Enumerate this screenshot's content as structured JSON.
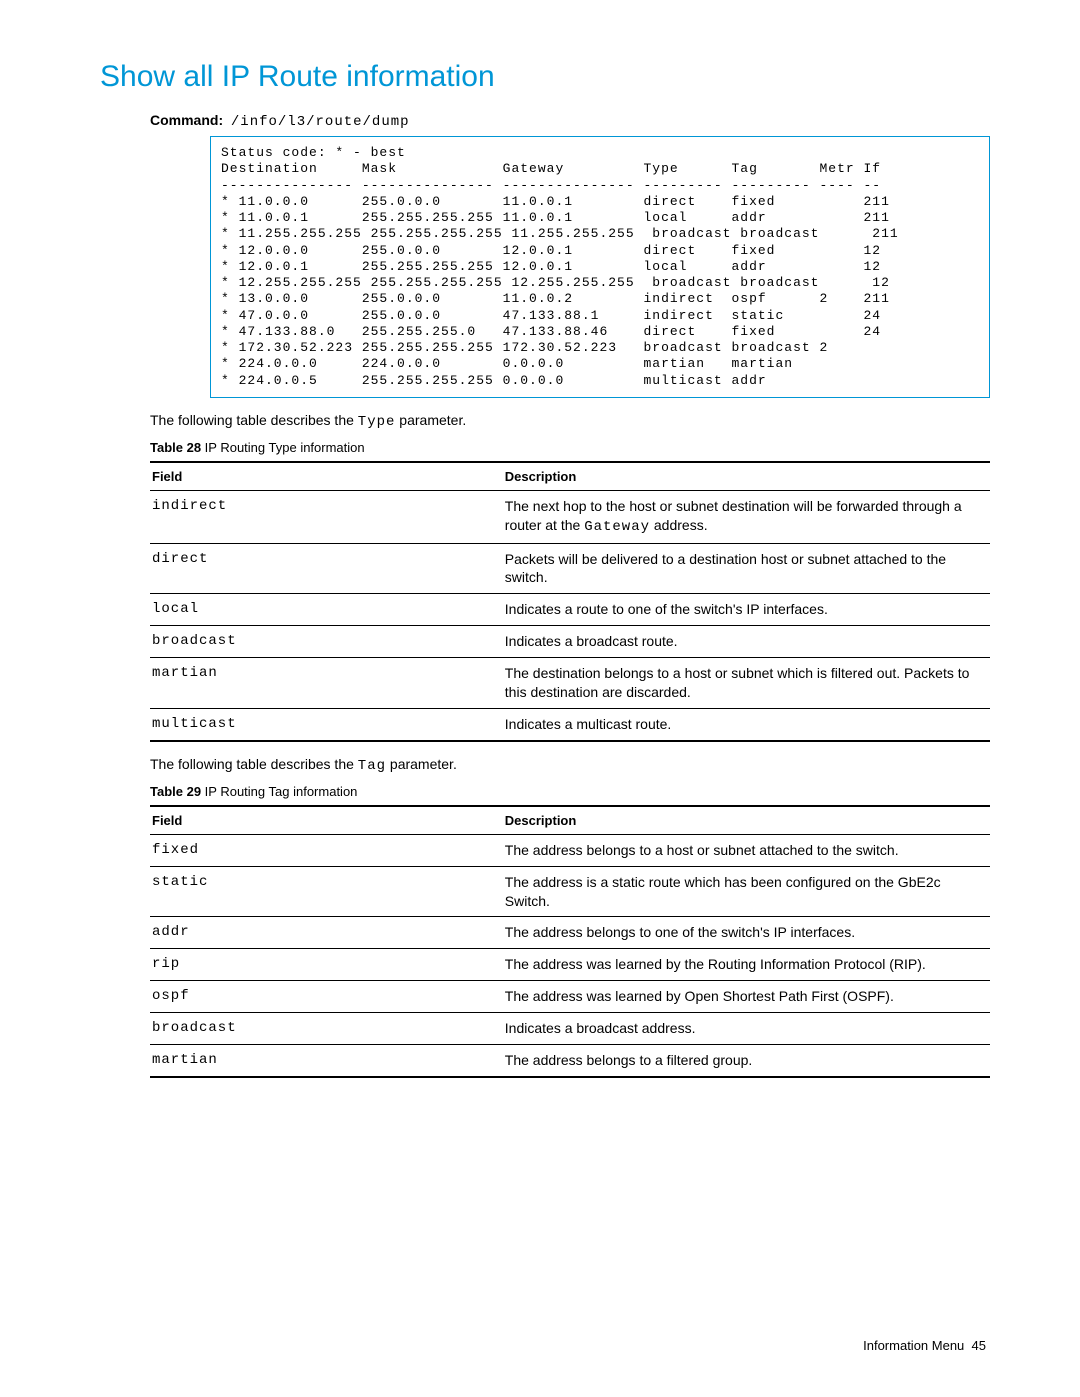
{
  "heading": "Show all IP Route information",
  "command_label": "Command:",
  "command_value": "/info/l3/route/dump",
  "terminal": "Status code: * - best\nDestination     Mask            Gateway         Type      Tag       Metr If\n--------------- --------------- --------------- --------- --------- ---- --\n* 11.0.0.0      255.0.0.0       11.0.0.1        direct    fixed          211\n* 11.0.0.1      255.255.255.255 11.0.0.1        local     addr           211\n* 11.255.255.255 255.255.255.255 11.255.255.255  broadcast broadcast      211\n* 12.0.0.0      255.0.0.0       12.0.0.1        direct    fixed          12\n* 12.0.0.1      255.255.255.255 12.0.0.1        local     addr           12\n* 12.255.255.255 255.255.255.255 12.255.255.255  broadcast broadcast      12\n* 13.0.0.0      255.0.0.0       11.0.0.2        indirect  ospf      2    211\n* 47.0.0.0      255.0.0.0       47.133.88.1     indirect  static         24\n* 47.133.88.0   255.255.255.0   47.133.88.46    direct    fixed          24\n* 172.30.52.223 255.255.255.255 172.30.52.223   broadcast broadcast 2\n* 224.0.0.0     224.0.0.0       0.0.0.0         martian   martian\n* 224.0.0.5     255.255.255.255 0.0.0.0         multicast addr",
  "desc_type_intro_pre": "The following table describes the ",
  "type_word": "Type",
  "desc_type_intro_post": " parameter.",
  "table28_label": "Table 28",
  "table28_title": " IP Routing Type information",
  "table_headers": {
    "field": "Field",
    "description": "Description"
  },
  "type_rows": [
    {
      "field": "indirect",
      "desc": "The next hop to the host or subnet destination will be forwarded through a router at the Gateway address."
    },
    {
      "field": "direct",
      "desc": "Packets will be delivered to a destination host or subnet attached to the switch."
    },
    {
      "field": "local",
      "desc": "Indicates a route to one of the switch's IP interfaces."
    },
    {
      "field": "broadcast",
      "desc": "Indicates a broadcast route."
    },
    {
      "field": "martian",
      "desc": "The destination belongs to a host or subnet which is filtered out. Packets to this destination are discarded."
    },
    {
      "field": "multicast",
      "desc": "Indicates a multicast route."
    }
  ],
  "desc_tag_intro_pre": "The following table describes the ",
  "tag_word": "Tag",
  "desc_tag_intro_post": " parameter.",
  "table29_label": "Table 29",
  "table29_title": " IP Routing Tag information",
  "tag_rows": [
    {
      "field": "fixed",
      "desc": "The address belongs to a host or subnet attached to the switch."
    },
    {
      "field": "static",
      "desc": "The address is a static route which has been configured on the GbE2c Switch."
    },
    {
      "field": "addr",
      "desc": "The address belongs to one of the switch's IP interfaces."
    },
    {
      "field": "rip",
      "desc": "The address was learned by the Routing Information Protocol (RIP)."
    },
    {
      "field": "ospf",
      "desc": "The address was learned by Open Shortest Path First (OSPF)."
    },
    {
      "field": "broadcast",
      "desc": "Indicates a broadcast address."
    },
    {
      "field": "martian",
      "desc": "The address belongs to a filtered group."
    }
  ],
  "footer_text": "Information Menu",
  "footer_page": "45"
}
